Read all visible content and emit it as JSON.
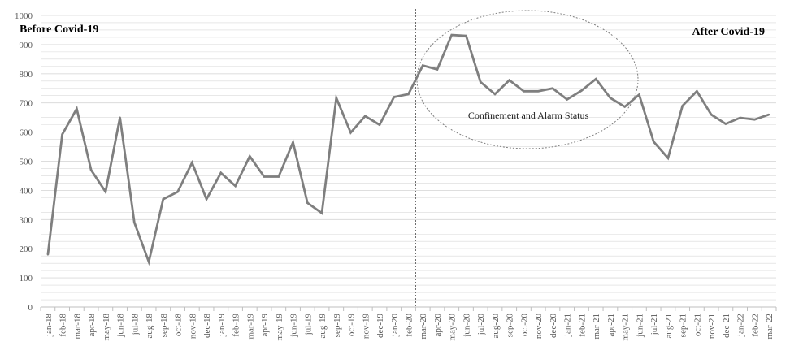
{
  "chart_data": {
    "type": "line",
    "title": "",
    "xlabel": "",
    "ylabel": "",
    "ylim": [
      0,
      1000
    ],
    "yticks": [
      0,
      100,
      200,
      300,
      400,
      500,
      600,
      700,
      800,
      900,
      1000
    ],
    "grid": "horizontal",
    "legend": "none",
    "categories": [
      "jan-18",
      "feb-18",
      "mar-18",
      "apr-18",
      "may-18",
      "jun-18",
      "jul-18",
      "aug-18",
      "sep-18",
      "oct-18",
      "nov-18",
      "dec-18",
      "jan-19",
      "feb-19",
      "mar-19",
      "apr-19",
      "may-19",
      "jun-19",
      "jul-19",
      "aug-19",
      "sep-19",
      "oct-19",
      "nov-19",
      "dec-19",
      "jan-20",
      "feb-20",
      "mar-20",
      "apr-20",
      "may-20",
      "jun-20",
      "jul-20",
      "aug-20",
      "sep-20",
      "oct-20",
      "nov-20",
      "dec-20",
      "jan-21",
      "feb-21",
      "mar-21",
      "apr-21",
      "may-21",
      "jun-21",
      "jul-21",
      "aug-21",
      "sep-21",
      "oct-21",
      "nov-21",
      "dec-21",
      "jan-22",
      "feb-22",
      "mar-22"
    ],
    "series": [
      {
        "values": [
          180,
          592,
          680,
          470,
          395,
          650,
          290,
          155,
          370,
          395,
          495,
          370,
          460,
          415,
          517,
          447,
          447,
          565,
          357,
          322,
          717,
          598,
          655,
          625,
          720,
          730,
          828,
          815,
          933,
          930,
          772,
          730,
          778,
          740,
          740,
          750,
          712,
          742,
          782,
          717,
          687,
          728,
          567,
          511,
          690,
          740,
          660,
          628,
          649,
          643,
          660
        ]
      }
    ],
    "divider_after": "feb-20",
    "annotations": {
      "before": "Before Covid-19",
      "after": "After Covid-19",
      "ellipse_label": "Confinement and Alarm Status"
    },
    "colors": {
      "line": "#7f7f7f",
      "grid": "#d9d9d9",
      "axis": "#bfbfbf",
      "divider": "#595959",
      "ellipse": "#7f7f7f"
    }
  }
}
